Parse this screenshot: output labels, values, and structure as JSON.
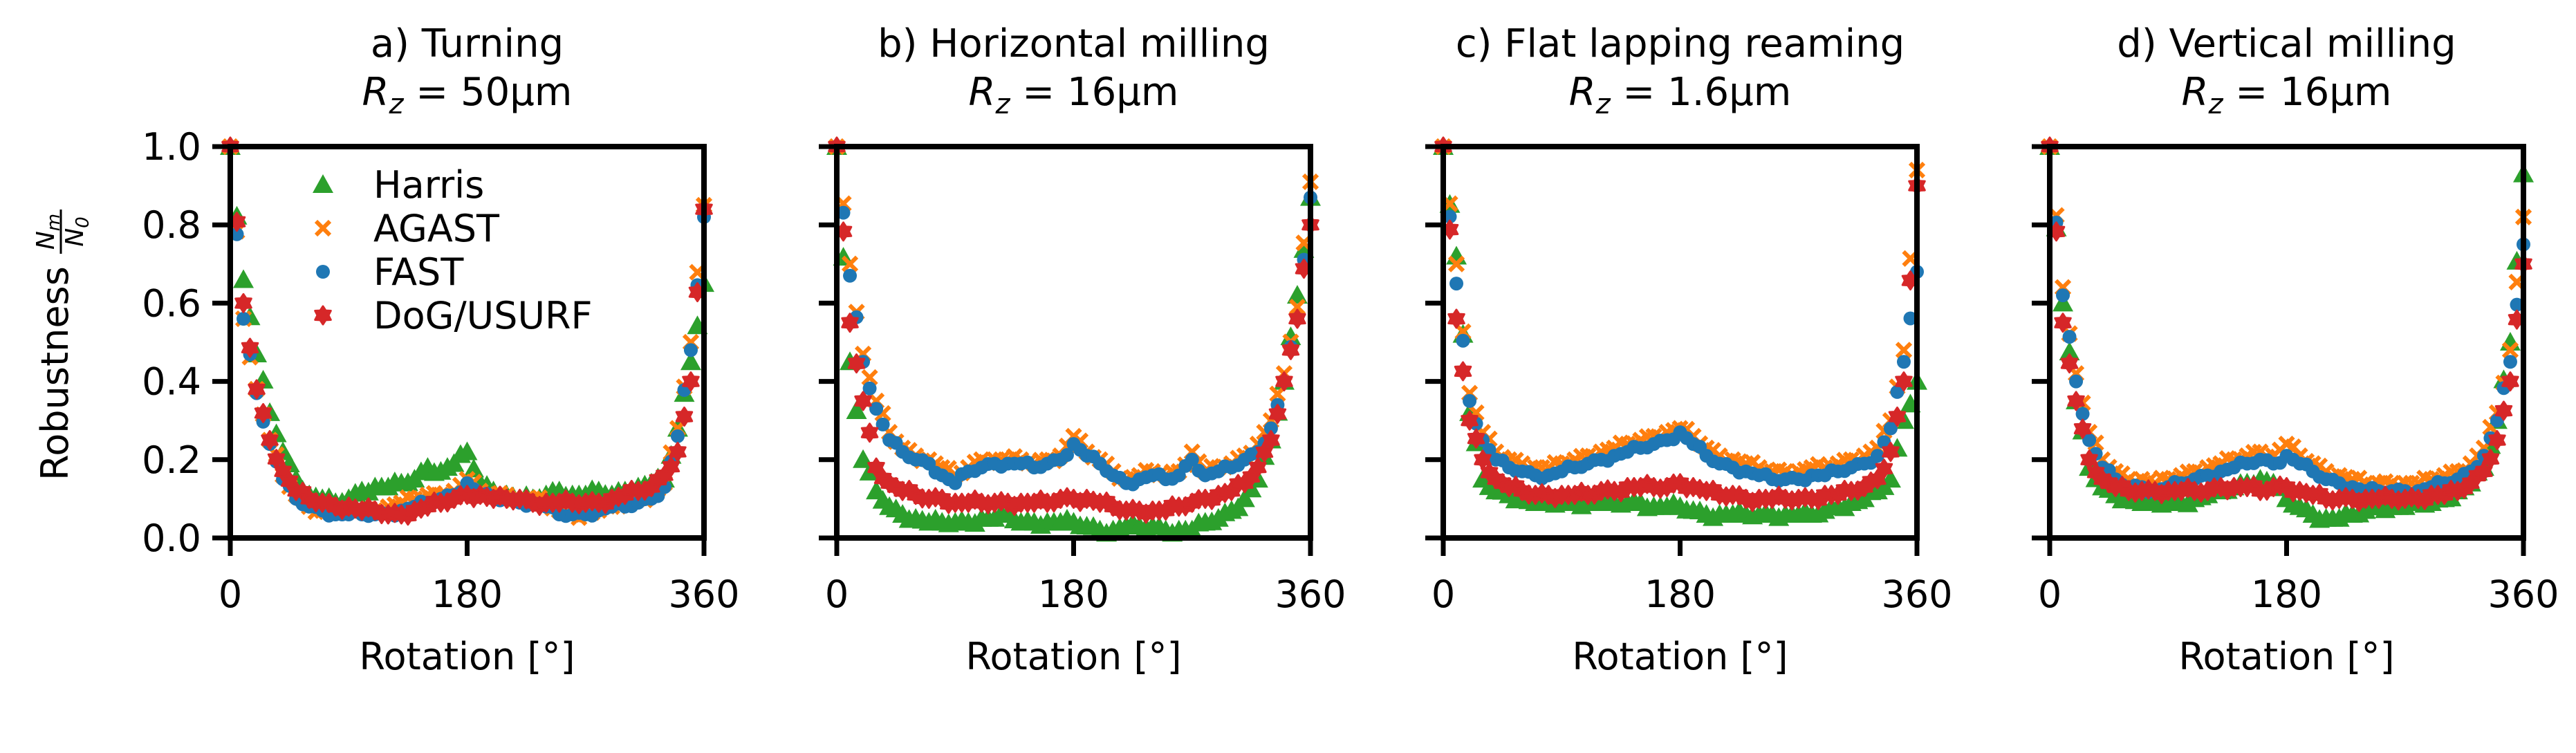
{
  "chart_data": [
    {
      "type": "scatter",
      "title": "a) Turning",
      "subtitle": {
        "symbol": "R",
        "sub": "z",
        "rest": " = 50μm"
      },
      "xlabel": "Rotation [°]",
      "ylabel": "Robustness",
      "ylabel_fraction": {
        "num": "N",
        "num_sub": "m",
        "den": "N",
        "den_sub": "0"
      },
      "xlim": [
        0,
        360
      ],
      "ylim": [
        0,
        1.0
      ],
      "xticks": [
        "0",
        "180",
        "360"
      ],
      "yticks": [
        "0.0",
        "0.2",
        "0.4",
        "0.6",
        "0.8",
        "1.0"
      ],
      "legend": {
        "placement": "upper-left",
        "entries": [
          "Harris",
          "AGAST",
          "FAST",
          "DoG/USURF"
        ]
      },
      "x": [
        0,
        10,
        20,
        30,
        40,
        50,
        60,
        70,
        80,
        90,
        100,
        110,
        120,
        130,
        140,
        150,
        160,
        170,
        180,
        190,
        200,
        210,
        220,
        230,
        240,
        250,
        260,
        270,
        280,
        290,
        300,
        310,
        320,
        330,
        340,
        350,
        360
      ],
      "series": [
        {
          "name": "Harris",
          "marker": "triangle",
          "color": "#2ca02c",
          "values": [
            1.0,
            0.66,
            0.47,
            0.32,
            0.22,
            0.15,
            0.11,
            0.1,
            0.09,
            0.1,
            0.12,
            0.13,
            0.13,
            0.14,
            0.15,
            0.18,
            0.17,
            0.19,
            0.22,
            0.14,
            0.12,
            0.11,
            0.1,
            0.1,
            0.11,
            0.12,
            0.11,
            0.11,
            0.12,
            0.11,
            0.12,
            0.13,
            0.14,
            0.15,
            0.28,
            0.45,
            0.65
          ]
        },
        {
          "name": "AGAST",
          "marker": "x",
          "color": "#ff7f0e",
          "values": [
            1.0,
            0.56,
            0.38,
            0.25,
            0.16,
            0.11,
            0.08,
            0.07,
            0.07,
            0.07,
            0.07,
            0.07,
            0.08,
            0.09,
            0.1,
            0.11,
            0.11,
            0.12,
            0.15,
            0.12,
            0.11,
            0.11,
            0.1,
            0.1,
            0.09,
            0.07,
            0.06,
            0.06,
            0.07,
            0.08,
            0.09,
            0.1,
            0.11,
            0.14,
            0.28,
            0.5,
            0.85
          ]
        },
        {
          "name": "FAST",
          "marker": "circle",
          "color": "#1f77b4",
          "values": [
            1.0,
            0.56,
            0.37,
            0.24,
            0.15,
            0.1,
            0.08,
            0.07,
            0.06,
            0.06,
            0.06,
            0.06,
            0.06,
            0.07,
            0.08,
            0.09,
            0.1,
            0.11,
            0.14,
            0.11,
            0.1,
            0.1,
            0.09,
            0.09,
            0.08,
            0.06,
            0.06,
            0.06,
            0.07,
            0.08,
            0.08,
            0.09,
            0.1,
            0.13,
            0.26,
            0.48,
            0.82
          ]
        },
        {
          "name": "DoG/USURF",
          "marker": "star",
          "color": "#d62728",
          "values": [
            1.0,
            0.6,
            0.38,
            0.25,
            0.17,
            0.12,
            0.1,
            0.09,
            0.08,
            0.08,
            0.07,
            0.07,
            0.06,
            0.06,
            0.07,
            0.08,
            0.09,
            0.1,
            0.11,
            0.11,
            0.1,
            0.1,
            0.1,
            0.09,
            0.09,
            0.09,
            0.09,
            0.09,
            0.09,
            0.1,
            0.11,
            0.12,
            0.13,
            0.16,
            0.22,
            0.4,
            0.84
          ]
        }
      ]
    },
    {
      "type": "scatter",
      "title": "b) Horizontal milling",
      "subtitle": {
        "symbol": "R",
        "sub": "z",
        "rest": " = 16μm"
      },
      "xlabel": "Rotation [°]",
      "xlim": [
        0,
        360
      ],
      "ylim": [
        0,
        1.0
      ],
      "xticks": [
        "0",
        "180",
        "360"
      ],
      "x": [
        0,
        10,
        20,
        30,
        40,
        50,
        60,
        70,
        80,
        90,
        100,
        110,
        120,
        130,
        140,
        150,
        160,
        170,
        180,
        190,
        200,
        210,
        220,
        230,
        240,
        250,
        260,
        270,
        280,
        290,
        300,
        310,
        320,
        330,
        340,
        350,
        360
      ],
      "series": [
        {
          "name": "Harris",
          "marker": "triangle",
          "color": "#2ca02c",
          "values": [
            1.0,
            0.45,
            0.2,
            0.12,
            0.08,
            0.06,
            0.05,
            0.04,
            0.04,
            0.04,
            0.04,
            0.05,
            0.05,
            0.06,
            0.04,
            0.04,
            0.04,
            0.04,
            0.04,
            0.03,
            0.02,
            0.02,
            0.03,
            0.03,
            0.03,
            0.02,
            0.02,
            0.02,
            0.04,
            0.05,
            0.07,
            0.1,
            0.15,
            0.25,
            0.4,
            0.62,
            0.87
          ]
        },
        {
          "name": "AGAST",
          "marker": "x",
          "color": "#ff7f0e",
          "values": [
            1.0,
            0.7,
            0.47,
            0.35,
            0.27,
            0.23,
            0.21,
            0.2,
            0.18,
            0.16,
            0.18,
            0.2,
            0.2,
            0.2,
            0.2,
            0.19,
            0.2,
            0.21,
            0.26,
            0.22,
            0.2,
            0.17,
            0.15,
            0.16,
            0.17,
            0.16,
            0.17,
            0.22,
            0.17,
            0.18,
            0.19,
            0.21,
            0.24,
            0.3,
            0.42,
            0.59,
            0.91
          ]
        },
        {
          "name": "FAST",
          "marker": "circle",
          "color": "#1f77b4",
          "values": [
            1.0,
            0.67,
            0.45,
            0.33,
            0.25,
            0.22,
            0.2,
            0.19,
            0.16,
            0.14,
            0.17,
            0.18,
            0.19,
            0.19,
            0.19,
            0.18,
            0.19,
            0.2,
            0.24,
            0.21,
            0.19,
            0.16,
            0.14,
            0.15,
            0.16,
            0.15,
            0.16,
            0.2,
            0.16,
            0.17,
            0.18,
            0.2,
            0.22,
            0.28,
            0.4,
            0.56,
            0.87
          ]
        },
        {
          "name": "DoG/USURF",
          "marker": "star",
          "color": "#d62728",
          "values": [
            1.0,
            0.55,
            0.35,
            0.18,
            0.14,
            0.12,
            0.11,
            0.1,
            0.1,
            0.09,
            0.09,
            0.09,
            0.09,
            0.09,
            0.09,
            0.09,
            0.09,
            0.1,
            0.1,
            0.1,
            0.09,
            0.08,
            0.07,
            0.07,
            0.07,
            0.07,
            0.08,
            0.09,
            0.1,
            0.11,
            0.12,
            0.14,
            0.18,
            0.25,
            0.4,
            0.56,
            0.8
          ]
        }
      ]
    },
    {
      "type": "scatter",
      "title": "c) Flat lapping reaming",
      "subtitle": {
        "symbol": "R",
        "sub": "z",
        "rest": " = 1.6μm"
      },
      "xlabel": "Rotation [°]",
      "xlim": [
        0,
        360
      ],
      "ylim": [
        0,
        1.0
      ],
      "xticks": [
        "0",
        "180",
        "360"
      ],
      "x": [
        0,
        10,
        20,
        30,
        40,
        50,
        60,
        70,
        80,
        90,
        100,
        110,
        120,
        130,
        140,
        150,
        160,
        170,
        180,
        190,
        200,
        210,
        220,
        230,
        240,
        250,
        260,
        270,
        280,
        290,
        300,
        310,
        320,
        330,
        340,
        350,
        360
      ],
      "series": [
        {
          "name": "Harris",
          "marker": "triangle",
          "color": "#2ca02c",
          "values": [
            1.0,
            0.72,
            0.32,
            0.15,
            0.12,
            0.11,
            0.1,
            0.09,
            0.09,
            0.09,
            0.09,
            0.09,
            0.09,
            0.09,
            0.09,
            0.09,
            0.08,
            0.08,
            0.08,
            0.07,
            0.06,
            0.06,
            0.06,
            0.06,
            0.06,
            0.06,
            0.06,
            0.06,
            0.06,
            0.07,
            0.08,
            0.09,
            0.1,
            0.12,
            0.15,
            0.3,
            0.4
          ]
        },
        {
          "name": "AGAST",
          "marker": "x",
          "color": "#ff7f0e",
          "values": [
            1.0,
            0.7,
            0.37,
            0.27,
            0.22,
            0.2,
            0.19,
            0.18,
            0.18,
            0.19,
            0.2,
            0.21,
            0.22,
            0.23,
            0.24,
            0.25,
            0.26,
            0.27,
            0.28,
            0.26,
            0.23,
            0.21,
            0.2,
            0.19,
            0.18,
            0.17,
            0.17,
            0.17,
            0.18,
            0.18,
            0.19,
            0.2,
            0.21,
            0.23,
            0.3,
            0.48,
            0.94
          ]
        },
        {
          "name": "FAST",
          "marker": "circle",
          "color": "#1f77b4",
          "values": [
            1.0,
            0.65,
            0.35,
            0.25,
            0.2,
            0.18,
            0.17,
            0.16,
            0.16,
            0.17,
            0.18,
            0.19,
            0.2,
            0.21,
            0.22,
            0.23,
            0.24,
            0.25,
            0.27,
            0.24,
            0.21,
            0.19,
            0.18,
            0.17,
            0.16,
            0.15,
            0.15,
            0.15,
            0.16,
            0.16,
            0.17,
            0.18,
            0.19,
            0.21,
            0.28,
            0.45,
            0.68
          ]
        },
        {
          "name": "DoG/USURF",
          "marker": "star",
          "color": "#d62728",
          "values": [
            1.0,
            0.56,
            0.3,
            0.2,
            0.15,
            0.13,
            0.12,
            0.11,
            0.11,
            0.11,
            0.11,
            0.11,
            0.12,
            0.12,
            0.13,
            0.13,
            0.13,
            0.13,
            0.14,
            0.13,
            0.12,
            0.11,
            0.11,
            0.1,
            0.1,
            0.1,
            0.1,
            0.1,
            0.1,
            0.11,
            0.11,
            0.12,
            0.13,
            0.15,
            0.22,
            0.4,
            0.9
          ]
        }
      ]
    },
    {
      "type": "scatter",
      "title": "d) Vertical milling",
      "subtitle": {
        "symbol": "R",
        "sub": "z",
        "rest": " = 16μm"
      },
      "xlabel": "Rotation [°]",
      "xlim": [
        0,
        360
      ],
      "ylim": [
        0,
        1.0
      ],
      "xticks": [
        "0",
        "180",
        "360"
      ],
      "x": [
        0,
        10,
        20,
        30,
        40,
        50,
        60,
        70,
        80,
        90,
        100,
        110,
        120,
        130,
        140,
        150,
        160,
        170,
        180,
        190,
        200,
        210,
        220,
        230,
        240,
        250,
        260,
        270,
        280,
        290,
        300,
        310,
        320,
        330,
        340,
        350,
        360
      ],
      "series": [
        {
          "name": "Harris",
          "marker": "triangle",
          "color": "#2ca02c",
          "values": [
            1.0,
            0.6,
            0.35,
            0.18,
            0.13,
            0.11,
            0.1,
            0.09,
            0.09,
            0.09,
            0.09,
            0.1,
            0.11,
            0.12,
            0.13,
            0.14,
            0.15,
            0.14,
            0.1,
            0.08,
            0.06,
            0.05,
            0.05,
            0.06,
            0.07,
            0.08,
            0.08,
            0.08,
            0.09,
            0.09,
            0.1,
            0.12,
            0.14,
            0.18,
            0.3,
            0.5,
            0.93
          ]
        },
        {
          "name": "AGAST",
          "marker": "x",
          "color": "#ff7f0e",
          "values": [
            1.0,
            0.64,
            0.42,
            0.27,
            0.2,
            0.17,
            0.15,
            0.15,
            0.14,
            0.15,
            0.16,
            0.17,
            0.18,
            0.19,
            0.2,
            0.21,
            0.22,
            0.21,
            0.24,
            0.21,
            0.19,
            0.17,
            0.16,
            0.15,
            0.14,
            0.14,
            0.14,
            0.14,
            0.14,
            0.15,
            0.16,
            0.17,
            0.19,
            0.23,
            0.32,
            0.48,
            0.82
          ]
        },
        {
          "name": "FAST",
          "marker": "circle",
          "color": "#1f77b4",
          "values": [
            1.0,
            0.62,
            0.4,
            0.25,
            0.18,
            0.15,
            0.13,
            0.13,
            0.12,
            0.13,
            0.14,
            0.15,
            0.16,
            0.17,
            0.18,
            0.19,
            0.2,
            0.19,
            0.21,
            0.19,
            0.17,
            0.15,
            0.14,
            0.13,
            0.12,
            0.12,
            0.12,
            0.12,
            0.12,
            0.13,
            0.14,
            0.15,
            0.17,
            0.21,
            0.3,
            0.45,
            0.75
          ]
        },
        {
          "name": "DoG/USURF",
          "marker": "star",
          "color": "#d62728",
          "values": [
            1.0,
            0.55,
            0.35,
            0.2,
            0.15,
            0.13,
            0.12,
            0.12,
            0.12,
            0.12,
            0.12,
            0.12,
            0.12,
            0.13,
            0.13,
            0.13,
            0.12,
            0.13,
            0.13,
            0.12,
            0.11,
            0.1,
            0.1,
            0.1,
            0.1,
            0.1,
            0.1,
            0.1,
            0.1,
            0.11,
            0.11,
            0.12,
            0.14,
            0.17,
            0.25,
            0.4,
            0.7
          ]
        }
      ]
    }
  ]
}
